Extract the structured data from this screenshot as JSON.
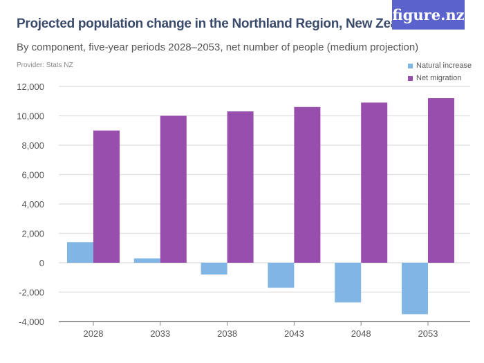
{
  "header": {
    "title": "Projected population change in the Northland Region, New Zealand",
    "subtitle": "By component, five-year periods 2028–2053, net number of people (medium projection)",
    "provider": "Provider: Stats NZ",
    "logo": "figure.nz"
  },
  "colors": {
    "natural_increase": "#80b5e4",
    "net_migration": "#984ead",
    "title": "#3a4a6b",
    "logo_bg": "#5a63cc"
  },
  "chart_data": {
    "type": "bar",
    "categories": [
      "2028",
      "2033",
      "2038",
      "2043",
      "2048",
      "2053"
    ],
    "series": [
      {
        "name": "Natural increase",
        "values": [
          1400,
          300,
          -800,
          -1700,
          -2700,
          -3500
        ]
      },
      {
        "name": "Net migration",
        "values": [
          9000,
          10000,
          10300,
          10600,
          10900,
          11200
        ]
      }
    ],
    "ylim": [
      -4000,
      12000
    ],
    "yticks": [
      -4000,
      -2000,
      0,
      2000,
      4000,
      6000,
      8000,
      10000,
      12000
    ],
    "ytick_labels": [
      "-4,000",
      "-2,000",
      "0",
      "2,000",
      "4,000",
      "6,000",
      "8,000",
      "10,000",
      "12,000"
    ],
    "grid": true,
    "legend_placement": "top-right"
  }
}
